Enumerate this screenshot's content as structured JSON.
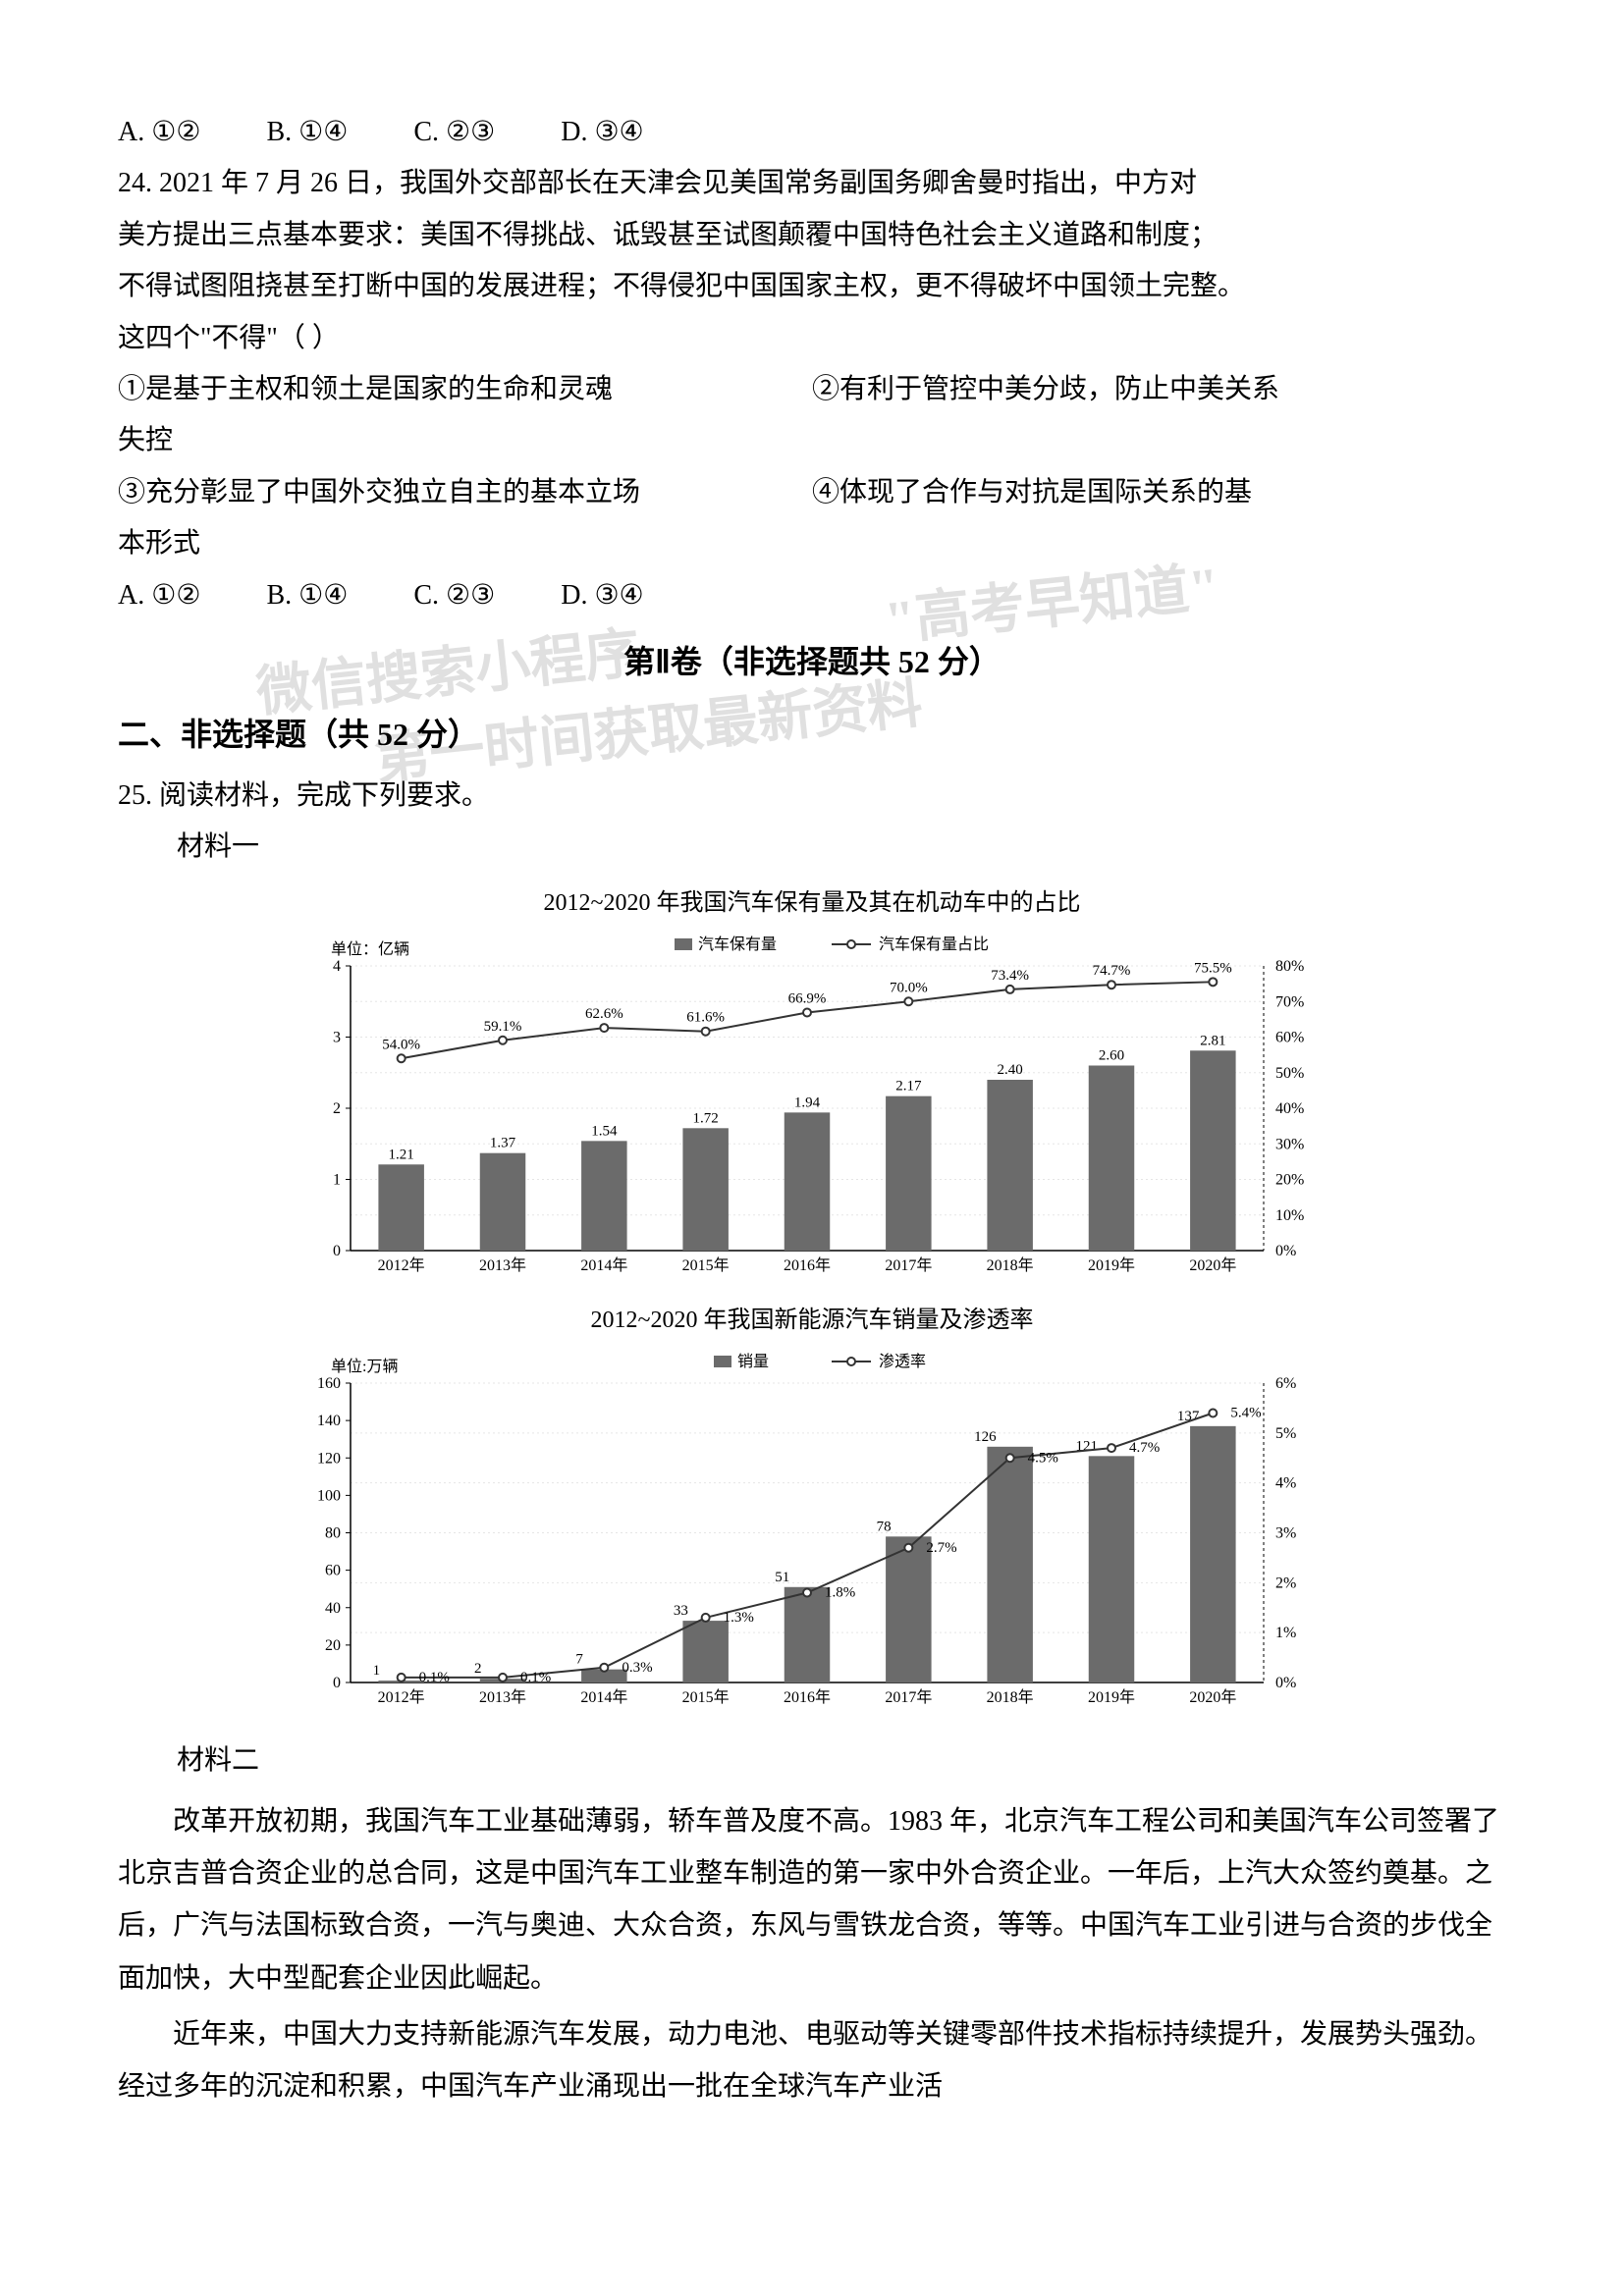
{
  "q23_options": {
    "a": "A. ①②",
    "b": "B. ①④",
    "c": "C. ②③",
    "d": "D. ③④"
  },
  "q24": {
    "stem_l1": "24. 2021 年 7 月 26 日，我国外交部部长在天津会见美国常务副国务卿舍曼时指出，中方对",
    "stem_l2": "美方提出三点基本要求：美国不得挑战、诋毁甚至试图颠覆中国特色社会主义道路和制度；",
    "stem_l3": "不得试图阻挠甚至打断中国的发展进程；不得侵犯中国国家主权，更不得破坏中国领土完整。",
    "stem_l4": "这四个\"不得\"（    ）",
    "opt1_l": "①是基于主权和领土是国家的生命和灵魂",
    "opt1_r": "②有利于管控中美分歧，防止中美关系",
    "opt1_r2": "失控",
    "opt2_l": "③充分彰显了中国外交独立自主的基本立场",
    "opt2_r": "④体现了合作与对抗是国际关系的基",
    "opt2_r2": "本形式",
    "choices": {
      "a": "A. ①②",
      "b": "B. ①④",
      "c": "C. ②③",
      "d": "D. ③④"
    }
  },
  "section2": {
    "title": "第Ⅱ卷（非选择题共 52 分）",
    "subtitle": "二、非选择题（共 52 分）"
  },
  "q25": {
    "stem": "25. 阅读材料，完成下列要求。",
    "material1_label": "材料一",
    "material2_label": "材料二"
  },
  "chart1": {
    "title": "2012~2020 年我国汽车保有量及其在机动车中的占比",
    "type": "bar+line",
    "y1_unit": "单位：亿辆",
    "legend_bar": "汽车保有量",
    "legend_line": "汽车保有量占比",
    "categories": [
      "2012年",
      "2013年",
      "2014年",
      "2015年",
      "2016年",
      "2017年",
      "2018年",
      "2019年",
      "2020年"
    ],
    "bar_values": [
      1.21,
      1.37,
      1.54,
      1.72,
      1.94,
      2.17,
      2.4,
      2.6,
      2.81
    ],
    "line_values": [
      54.0,
      59.1,
      62.6,
      61.6,
      66.9,
      70.0,
      73.4,
      74.7,
      75.5
    ],
    "line_labels": [
      "54.0%",
      "59.1%",
      "62.6%",
      "61.6%",
      "66.9%",
      "70.0%",
      "73.4%",
      "74.7%",
      "75.5%"
    ],
    "y1_ticks": [
      0,
      1,
      2,
      3,
      4
    ],
    "y2_ticks": [
      "0%",
      "10%",
      "20%",
      "30%",
      "40%",
      "50%",
      "60%",
      "70%",
      "80%"
    ],
    "bar_color": "#6b6b6b",
    "line_color": "#333333",
    "marker_color": "#ffffff",
    "grid_color": "#e5e5e5",
    "axis_color": "#000000",
    "label_fontsize": 16,
    "bg_color": "#ffffff"
  },
  "chart2": {
    "title": "2012~2020 年我国新能源汽车销量及渗透率",
    "type": "bar+line",
    "y1_unit": "单位:万辆",
    "legend_bar": "销量",
    "legend_line": "渗透率",
    "categories": [
      "2012年",
      "2013年",
      "2014年",
      "2015年",
      "2016年",
      "2017年",
      "2018年",
      "2019年",
      "2020年"
    ],
    "bar_values": [
      1,
      2,
      7,
      33,
      51,
      78,
      126,
      121,
      137
    ],
    "line_values": [
      0.1,
      0.1,
      0.3,
      1.3,
      1.8,
      2.7,
      4.5,
      4.7,
      5.4
    ],
    "line_labels": [
      "0.1%",
      "0.1%",
      "0.3%",
      "1.3%",
      "1.8%",
      "2.7%",
      "4.5%",
      "4.7%",
      "5.4%"
    ],
    "y1_ticks": [
      0,
      20,
      40,
      60,
      80,
      100,
      120,
      140,
      160
    ],
    "y2_ticks": [
      "0%",
      "1%",
      "2%",
      "3%",
      "4%",
      "5%",
      "6%"
    ],
    "bar_color": "#6b6b6b",
    "line_color": "#333333",
    "marker_color": "#ffffff",
    "grid_color": "#e5e5e5",
    "axis_color": "#000000",
    "label_fontsize": 16,
    "bg_color": "#ffffff"
  },
  "material2": {
    "p1_l1": "改革开放初期，我国汽车工业基础薄弱，轿车普及度不高。1983 年，北京汽车工程公",
    "p1_l2": "司和美国汽车公司签署了北京吉普合资企业的总合同，这是中国汽车工业整车制造的第一家",
    "p1_l3": "中外合资企业。一年后，上汽大众签约奠基。之后，广汽与法国标致合资，一汽与奥迪、大",
    "p1_l4": "众合资，东风与雪铁龙合资，等等。中国汽车工业引进与合资的步伐全面加快，大中型配套",
    "p1_l5": "企业因此崛起。",
    "p2_l1": "近年来，中国大力支持新能源汽车发展，动力电池、电驱动等关键零部件技术指标持续",
    "p2_l2": "提升，发展势头强劲。经过多年的沉淀和积累，中国汽车产业涌现出一批在全球汽车产业活"
  },
  "watermarks": {
    "w1": "微信搜索小程序",
    "w2": "\"高考早知道\"",
    "w3": "第一时间获取最新资料"
  }
}
